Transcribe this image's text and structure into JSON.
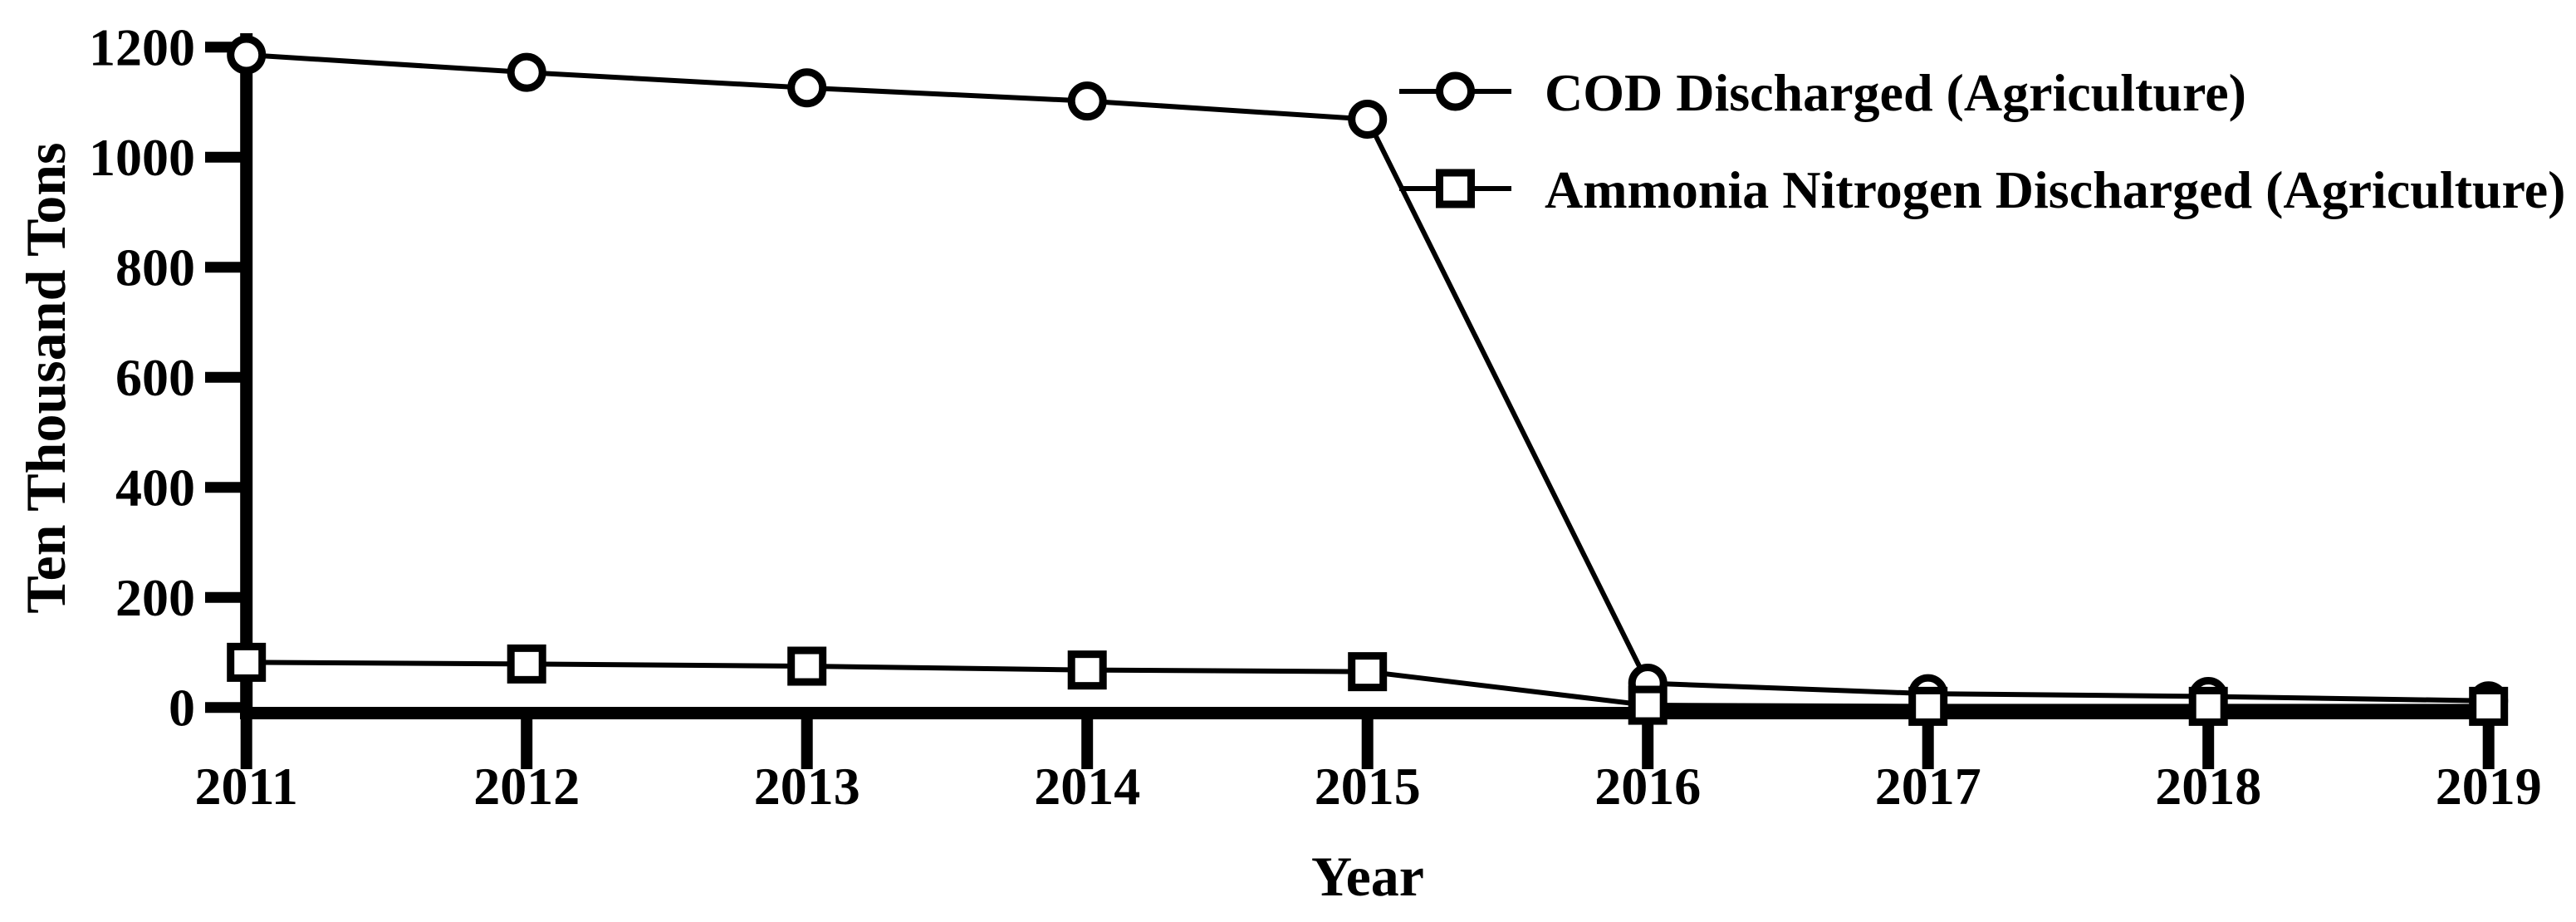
{
  "figure": {
    "background": "#ffffff",
    "axis_color": "#000000"
  },
  "chart_data": {
    "type": "line",
    "title": "",
    "xlabel": "Year",
    "ylabel": "Ten Thousand Tons",
    "x": [
      2011,
      2012,
      2013,
      2014,
      2015,
      2016,
      2017,
      2018,
      2019
    ],
    "xtick_labels": [
      "2011",
      "2012",
      "2013",
      "2014",
      "2015",
      "2016",
      "2017",
      "2018",
      "2019"
    ],
    "yticks": [
      0,
      200,
      400,
      600,
      800,
      1000,
      1200
    ],
    "ytick_labels": [
      "0",
      "200",
      "400",
      "600",
      "800",
      "1000",
      "1200"
    ],
    "ylim": [
      0,
      1200
    ],
    "grid": false,
    "legend_position": "top-right-inside",
    "series": [
      {
        "name": "COD Discharged (Agriculture)",
        "marker": "circle",
        "color": "#000000",
        "values": [
          1186,
          1154,
          1126,
          1102,
          1069,
          44,
          25,
          20,
          12
        ]
      },
      {
        "name": "Ammonia Nitrogen Discharged (Agriculture)",
        "marker": "square",
        "color": "#000000",
        "values": [
          82,
          79,
          75,
          68,
          65,
          4,
          2,
          2,
          2
        ]
      }
    ]
  }
}
